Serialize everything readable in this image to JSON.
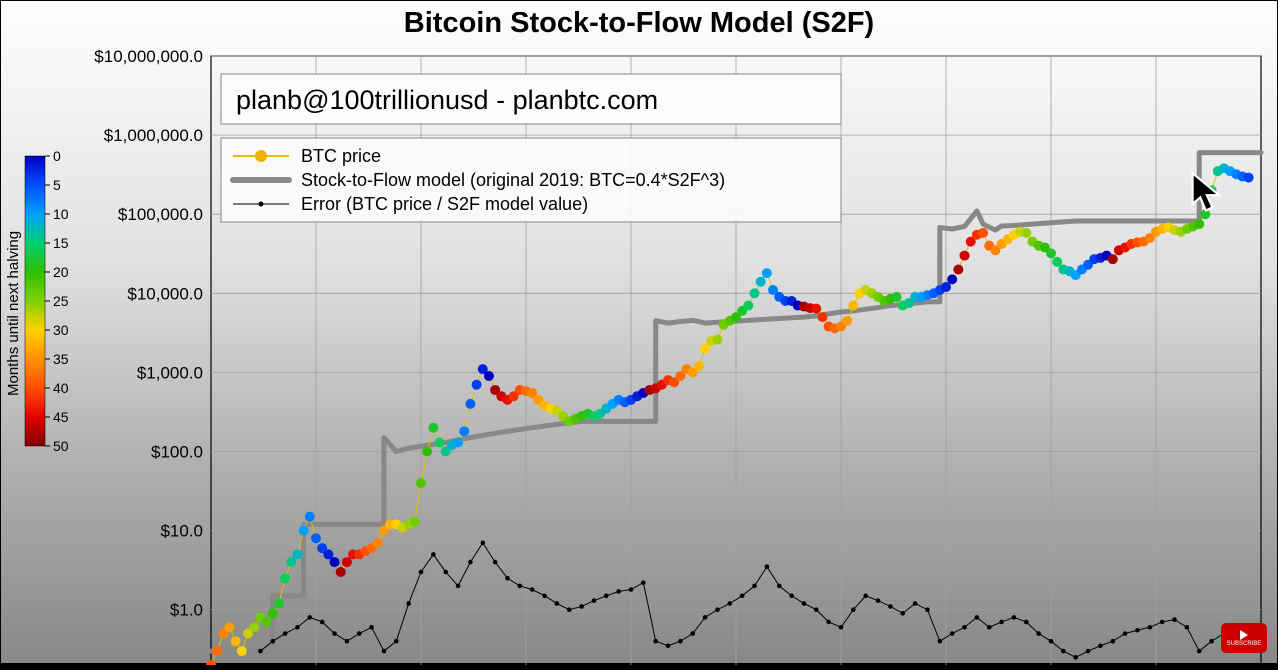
{
  "title": "Bitcoin Stock-to-Flow Model (S2F)",
  "attribution": "planb@100trillionusd  -  planbtc.com",
  "legend": {
    "btc_price": "BTC price",
    "s2f_model": "Stock-to-Flow model (original 2019:  BTC=0.4*S2F^3)",
    "error": "Error (BTC price / S2F model value)"
  },
  "colorbar": {
    "label": "Months until next halving",
    "ticks": [
      0,
      5,
      10,
      15,
      20,
      25,
      30,
      35,
      40,
      45,
      50
    ],
    "colors": [
      "#0000c0",
      "#0050ff",
      "#00a0ff",
      "#00d070",
      "#30c000",
      "#80d000",
      "#ffd000",
      "#ff9000",
      "#ff5000",
      "#e00000",
      "#800000"
    ]
  },
  "chart": {
    "type": "scatter+line",
    "yscale": "log",
    "ylim": [
      0.2,
      10000000
    ],
    "yticks": [
      1,
      10,
      100,
      1000,
      10000,
      100000,
      1000000,
      10000000
    ],
    "ytick_labels": [
      "$1.0",
      "$10.0",
      "$100.0",
      "$1,000.0",
      "$10,000.0",
      "$100,000.0",
      "$1,000,000.0",
      "$10,000,000.0"
    ],
    "x_range": [
      0,
      170
    ],
    "background": "gradient",
    "grid_color": "#a0a0a0",
    "title_fontsize": 29,
    "label_fontsize": 17,
    "marker_radius": 5,
    "s2f_line_color": "#888888",
    "s2f_line_width": 5,
    "error_line_color": "#000000",
    "error_line_width": 1,
    "error_marker_radius": 2.3,
    "s2f": [
      [
        0,
        0.3
      ],
      [
        3,
        0.3
      ],
      [
        10,
        1.5
      ],
      [
        12,
        1.5
      ],
      [
        15,
        12
      ],
      [
        17,
        12
      ],
      [
        20,
        12
      ],
      [
        22,
        12
      ],
      [
        25,
        12
      ],
      [
        28,
        150
      ],
      [
        30,
        100
      ],
      [
        32,
        110
      ],
      [
        35,
        120
      ],
      [
        38,
        130
      ],
      [
        40,
        140
      ],
      [
        42,
        150
      ],
      [
        44,
        160
      ],
      [
        46,
        170
      ],
      [
        48,
        180
      ],
      [
        50,
        190
      ],
      [
        52,
        200
      ],
      [
        54,
        210
      ],
      [
        56,
        220
      ],
      [
        58,
        230
      ],
      [
        60,
        240
      ],
      [
        72,
        4500
      ],
      [
        74,
        4200
      ],
      [
        76,
        4400
      ],
      [
        78,
        4550
      ],
      [
        80,
        4200
      ],
      [
        82,
        4300
      ],
      [
        84,
        4400
      ],
      [
        86,
        4500
      ],
      [
        88,
        4600
      ],
      [
        90,
        4700
      ],
      [
        92,
        4800
      ],
      [
        94,
        4900
      ],
      [
        96,
        5000
      ],
      [
        98,
        5200
      ],
      [
        100,
        5500
      ],
      [
        102,
        5800
      ],
      [
        104,
        6000
      ],
      [
        106,
        6300
      ],
      [
        108,
        6600
      ],
      [
        110,
        7000
      ],
      [
        112,
        7200
      ],
      [
        114,
        7500
      ],
      [
        116,
        7800
      ],
      [
        118,
        68000
      ],
      [
        120,
        65000
      ],
      [
        122,
        70000
      ],
      [
        124,
        110000
      ],
      [
        125,
        75000
      ],
      [
        127,
        63000
      ],
      [
        128,
        71000
      ],
      [
        130,
        72000
      ],
      [
        132,
        74000
      ],
      [
        134,
        76000
      ],
      [
        136,
        78000
      ],
      [
        138,
        80000
      ],
      [
        140,
        82000
      ],
      [
        160,
        600000
      ],
      [
        162,
        600000
      ],
      [
        164,
        600000
      ],
      [
        166,
        600000
      ],
      [
        168,
        600000
      ],
      [
        170,
        600000
      ]
    ],
    "btc": [
      [
        0,
        0.2,
        40
      ],
      [
        1,
        0.3,
        38
      ],
      [
        2,
        0.5,
        36
      ],
      [
        3,
        0.6,
        34
      ],
      [
        4,
        0.4,
        32
      ],
      [
        5,
        0.3,
        30
      ],
      [
        6,
        0.5,
        28
      ],
      [
        7,
        0.6,
        26
      ],
      [
        8,
        0.8,
        24
      ],
      [
        9,
        0.7,
        22
      ],
      [
        10,
        0.9,
        20
      ],
      [
        11,
        1.2,
        18
      ],
      [
        12,
        2.5,
        16
      ],
      [
        13,
        4,
        14
      ],
      [
        14,
        5,
        12
      ],
      [
        15,
        10,
        10
      ],
      [
        16,
        15,
        8
      ],
      [
        17,
        8,
        6
      ],
      [
        18,
        6,
        4
      ],
      [
        19,
        5,
        2
      ],
      [
        20,
        4,
        0
      ],
      [
        21,
        3,
        48
      ],
      [
        22,
        4,
        46
      ],
      [
        23,
        5,
        44
      ],
      [
        24,
        5,
        42
      ],
      [
        25,
        5.5,
        40
      ],
      [
        26,
        6,
        38
      ],
      [
        27,
        7,
        36
      ],
      [
        28,
        10,
        34
      ],
      [
        29,
        12,
        32
      ],
      [
        30,
        12,
        30
      ],
      [
        31,
        11,
        28
      ],
      [
        32,
        12,
        26
      ],
      [
        33,
        13,
        24
      ],
      [
        34,
        40,
        22
      ],
      [
        35,
        100,
        20
      ],
      [
        36,
        200,
        18
      ],
      [
        37,
        130,
        16
      ],
      [
        38,
        100,
        14
      ],
      [
        39,
        120,
        12
      ],
      [
        40,
        130,
        10
      ],
      [
        41,
        180,
        8
      ],
      [
        42,
        400,
        6
      ],
      [
        43,
        700,
        4
      ],
      [
        44,
        1100,
        2
      ],
      [
        45,
        900,
        0
      ],
      [
        46,
        600,
        48
      ],
      [
        47,
        500,
        46
      ],
      [
        48,
        450,
        44
      ],
      [
        49,
        500,
        42
      ],
      [
        50,
        600,
        40
      ],
      [
        51,
        580,
        38
      ],
      [
        52,
        550,
        36
      ],
      [
        53,
        450,
        34
      ],
      [
        54,
        380,
        32
      ],
      [
        55,
        350,
        30
      ],
      [
        56,
        330,
        28
      ],
      [
        57,
        280,
        26
      ],
      [
        58,
        240,
        24
      ],
      [
        59,
        260,
        22
      ],
      [
        60,
        280,
        20
      ],
      [
        61,
        300,
        18
      ],
      [
        62,
        280,
        16
      ],
      [
        63,
        300,
        14
      ],
      [
        64,
        350,
        12
      ],
      [
        65,
        400,
        10
      ],
      [
        66,
        450,
        8
      ],
      [
        67,
        420,
        6
      ],
      [
        68,
        450,
        4
      ],
      [
        69,
        500,
        2
      ],
      [
        70,
        550,
        0
      ],
      [
        71,
        600,
        48
      ],
      [
        72,
        630,
        46
      ],
      [
        73,
        700,
        44
      ],
      [
        74,
        800,
        42
      ],
      [
        75,
        750,
        40
      ],
      [
        76,
        900,
        38
      ],
      [
        77,
        1100,
        36
      ],
      [
        78,
        1000,
        34
      ],
      [
        79,
        1200,
        32
      ],
      [
        80,
        2000,
        30
      ],
      [
        81,
        2500,
        28
      ],
      [
        82,
        2600,
        26
      ],
      [
        83,
        4000,
        24
      ],
      [
        84,
        4500,
        22
      ],
      [
        85,
        5000,
        20
      ],
      [
        86,
        6000,
        18
      ],
      [
        87,
        7000,
        16
      ],
      [
        88,
        10000,
        14
      ],
      [
        89,
        14000,
        12
      ],
      [
        90,
        18000,
        10
      ],
      [
        91,
        11000,
        8
      ],
      [
        92,
        9000,
        6
      ],
      [
        93,
        8000,
        4
      ],
      [
        94,
        8000,
        2
      ],
      [
        95,
        7000,
        0
      ],
      [
        96,
        6800,
        48
      ],
      [
        97,
        6500,
        46
      ],
      [
        98,
        6400,
        44
      ],
      [
        99,
        5000,
        42
      ],
      [
        100,
        3800,
        40
      ],
      [
        101,
        3600,
        38
      ],
      [
        102,
        3800,
        36
      ],
      [
        103,
        4500,
        34
      ],
      [
        104,
        7000,
        32
      ],
      [
        105,
        10000,
        30
      ],
      [
        106,
        11000,
        28
      ],
      [
        107,
        10000,
        26
      ],
      [
        108,
        9000,
        24
      ],
      [
        109,
        8000,
        22
      ],
      [
        110,
        8500,
        20
      ],
      [
        111,
        9000,
        18
      ],
      [
        112,
        7000,
        16
      ],
      [
        113,
        7500,
        14
      ],
      [
        114,
        9000,
        12
      ],
      [
        115,
        9000,
        10
      ],
      [
        116,
        9500,
        8
      ],
      [
        117,
        10000,
        6
      ],
      [
        118,
        11000,
        4
      ],
      [
        119,
        12000,
        2
      ],
      [
        120,
        15000,
        0
      ],
      [
        121,
        20000,
        48
      ],
      [
        122,
        30000,
        46
      ],
      [
        123,
        45000,
        44
      ],
      [
        124,
        55000,
        42
      ],
      [
        125,
        58000,
        40
      ],
      [
        126,
        40000,
        38
      ],
      [
        127,
        35000,
        36
      ],
      [
        128,
        42000,
        34
      ],
      [
        129,
        48000,
        32
      ],
      [
        130,
        55000,
        30
      ],
      [
        131,
        60000,
        28
      ],
      [
        132,
        58000,
        26
      ],
      [
        133,
        45000,
        24
      ],
      [
        134,
        40000,
        22
      ],
      [
        135,
        38000,
        20
      ],
      [
        136,
        32000,
        18
      ],
      [
        137,
        25000,
        16
      ],
      [
        138,
        20000,
        14
      ],
      [
        139,
        19000,
        12
      ],
      [
        140,
        17000,
        10
      ],
      [
        141,
        20000,
        8
      ],
      [
        142,
        23000,
        6
      ],
      [
        143,
        27000,
        4
      ],
      [
        144,
        28000,
        2
      ],
      [
        145,
        30000,
        0
      ],
      [
        146,
        27000,
        48
      ],
      [
        147,
        35000,
        46
      ],
      [
        148,
        38000,
        44
      ],
      [
        149,
        42000,
        42
      ],
      [
        150,
        44000,
        40
      ],
      [
        151,
        45000,
        38
      ],
      [
        152,
        50000,
        36
      ],
      [
        153,
        60000,
        34
      ],
      [
        154,
        65000,
        32
      ],
      [
        155,
        68000,
        30
      ],
      [
        156,
        63000,
        28
      ],
      [
        157,
        60000,
        26
      ],
      [
        158,
        65000,
        24
      ],
      [
        159,
        70000,
        22
      ],
      [
        160,
        75000,
        20
      ],
      [
        161,
        100000,
        18
      ],
      [
        162,
        200000,
        16
      ],
      [
        163,
        350000,
        14
      ],
      [
        164,
        380000,
        12
      ],
      [
        165,
        350000,
        10
      ],
      [
        166,
        320000,
        8
      ],
      [
        167,
        300000,
        6
      ],
      [
        168,
        290000,
        4
      ]
    ],
    "error": [
      [
        8,
        0.3
      ],
      [
        10,
        0.4
      ],
      [
        12,
        0.5
      ],
      [
        14,
        0.6
      ],
      [
        16,
        0.8
      ],
      [
        18,
        0.7
      ],
      [
        20,
        0.5
      ],
      [
        22,
        0.4
      ],
      [
        24,
        0.5
      ],
      [
        26,
        0.6
      ],
      [
        28,
        0.3
      ],
      [
        30,
        0.4
      ],
      [
        32,
        1.2
      ],
      [
        34,
        3
      ],
      [
        36,
        5
      ],
      [
        38,
        3
      ],
      [
        40,
        2
      ],
      [
        42,
        4
      ],
      [
        44,
        7
      ],
      [
        46,
        4
      ],
      [
        48,
        2.5
      ],
      [
        50,
        2
      ],
      [
        52,
        1.8
      ],
      [
        54,
        1.5
      ],
      [
        56,
        1.2
      ],
      [
        58,
        1
      ],
      [
        60,
        1.1
      ],
      [
        62,
        1.3
      ],
      [
        64,
        1.5
      ],
      [
        66,
        1.7
      ],
      [
        68,
        1.8
      ],
      [
        70,
        2.2
      ],
      [
        72,
        0.4
      ],
      [
        74,
        0.35
      ],
      [
        76,
        0.4
      ],
      [
        78,
        0.5
      ],
      [
        80,
        0.8
      ],
      [
        82,
        1
      ],
      [
        84,
        1.2
      ],
      [
        86,
        1.5
      ],
      [
        88,
        2
      ],
      [
        90,
        3.5
      ],
      [
        92,
        2
      ],
      [
        94,
        1.5
      ],
      [
        96,
        1.2
      ],
      [
        98,
        1
      ],
      [
        100,
        0.7
      ],
      [
        102,
        0.6
      ],
      [
        104,
        1
      ],
      [
        106,
        1.5
      ],
      [
        108,
        1.3
      ],
      [
        110,
        1.1
      ],
      [
        112,
        0.9
      ],
      [
        114,
        1.2
      ],
      [
        116,
        1
      ],
      [
        118,
        0.4
      ],
      [
        120,
        0.5
      ],
      [
        122,
        0.6
      ],
      [
        124,
        0.8
      ],
      [
        126,
        0.6
      ],
      [
        128,
        0.7
      ],
      [
        130,
        0.8
      ],
      [
        132,
        0.7
      ],
      [
        134,
        0.5
      ],
      [
        136,
        0.4
      ],
      [
        138,
        0.3
      ],
      [
        140,
        0.25
      ],
      [
        142,
        0.3
      ],
      [
        144,
        0.35
      ],
      [
        146,
        0.4
      ],
      [
        148,
        0.5
      ],
      [
        150,
        0.55
      ],
      [
        152,
        0.6
      ],
      [
        154,
        0.7
      ],
      [
        156,
        0.75
      ],
      [
        158,
        0.6
      ],
      [
        160,
        0.3
      ],
      [
        162,
        0.4
      ],
      [
        164,
        0.5
      ],
      [
        166,
        0.45
      ]
    ]
  },
  "yt_label": "SUBSCRIBE"
}
